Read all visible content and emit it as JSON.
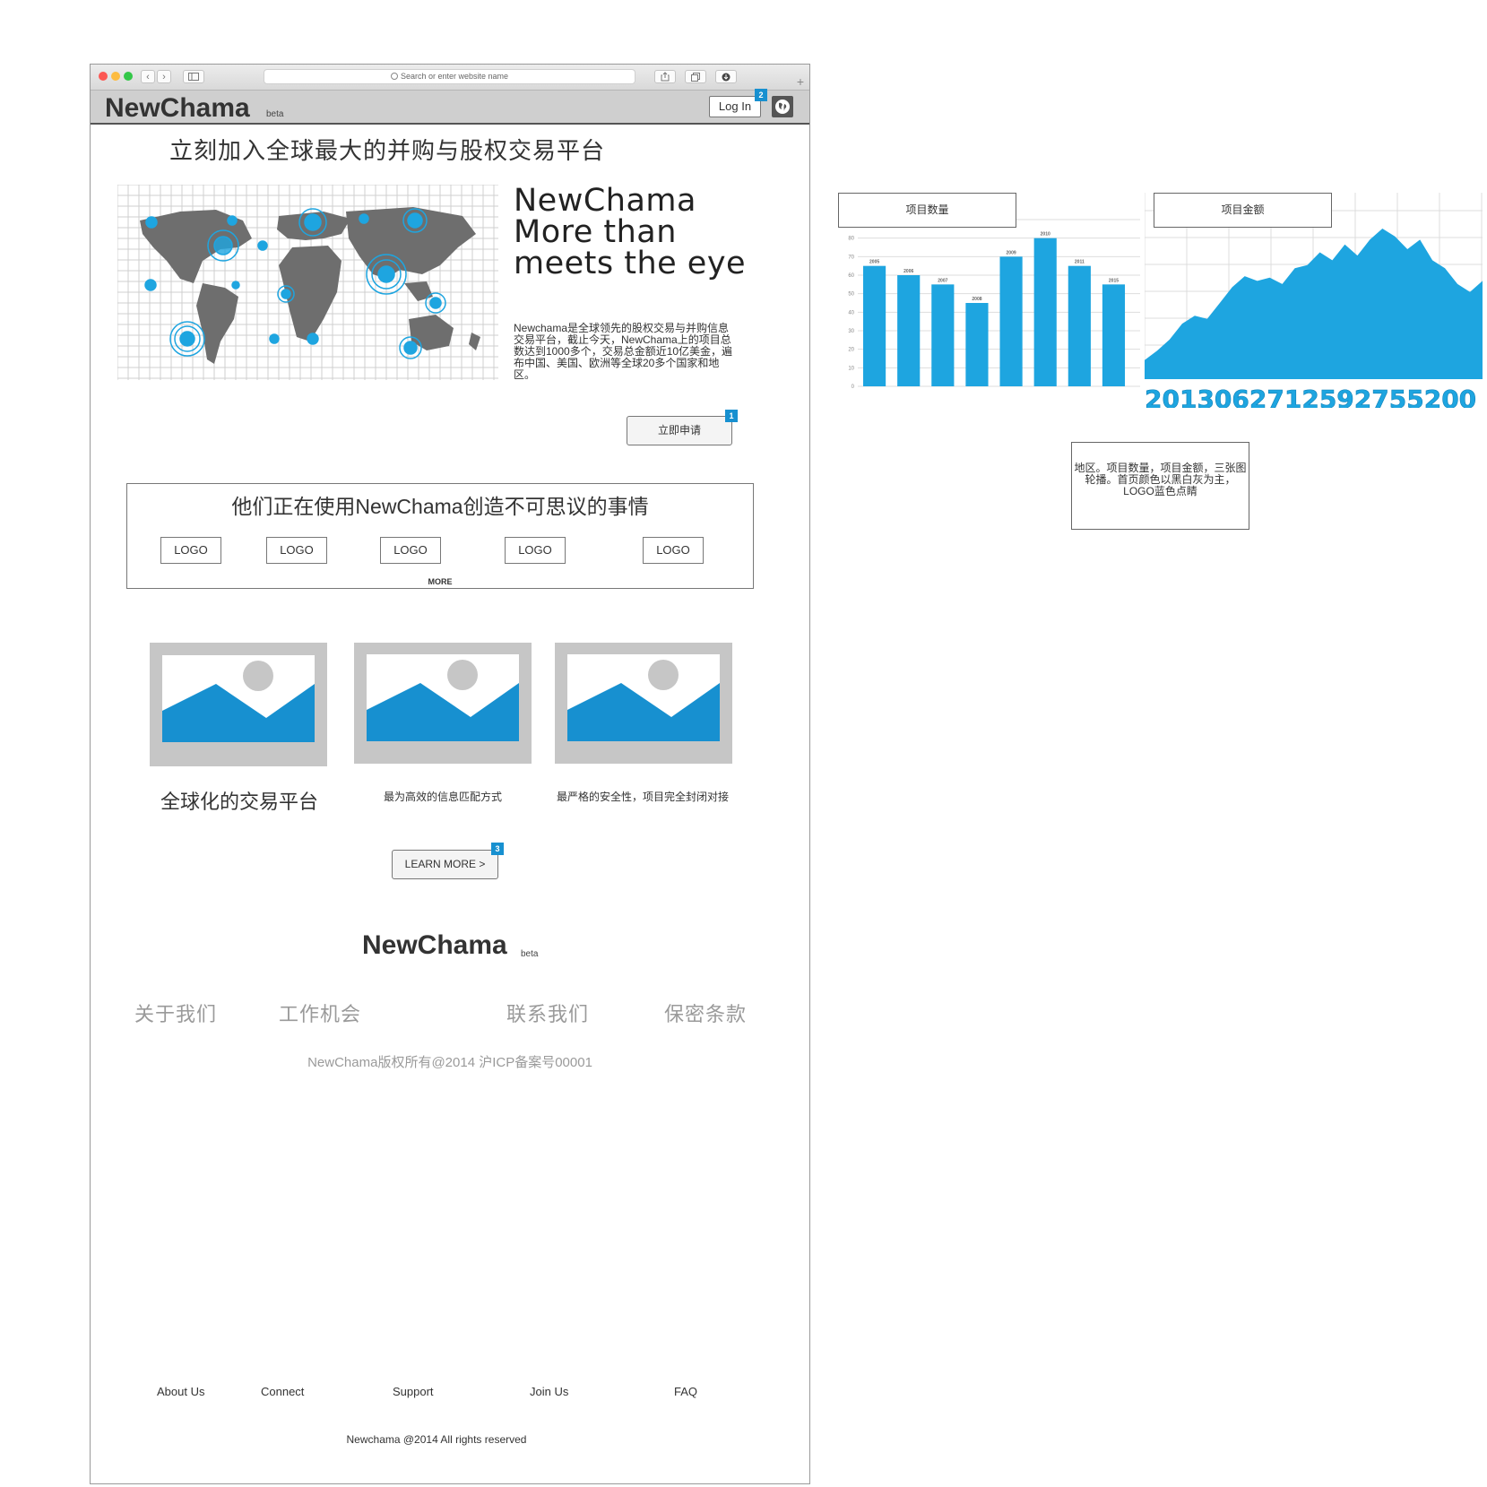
{
  "browser": {
    "url_placeholder": "Search or enter website name",
    "back_glyph": "‹",
    "forward_glyph": "›",
    "new_tab_glyph": "+"
  },
  "header": {
    "brand": "NewChama",
    "beta": "beta",
    "login_label": "Log In",
    "login_badge": "2",
    "globe_icon": "globe-icon"
  },
  "hero": {
    "headline": "立刻加入全球最大的并购与股权交易平台",
    "slogan_lines": [
      "NewChama",
      "More than",
      "meets the eye"
    ],
    "intro": "Newchama是全球领先的股权交易与并购信息交易平台，截止今天，NewChama上的项目总数达到1000多个，交易总金额近10亿美金，遍布中国、美国、欧洲等全球20多个国家和地区。",
    "apply_label": "立即申请",
    "apply_badge": "1"
  },
  "partners": {
    "title": "他们正在使用NewChama创造不可思议的事情",
    "logos": [
      "LOGO",
      "LOGO",
      "LOGO",
      "LOGO",
      "LOGO"
    ],
    "more_label": "MORE"
  },
  "features": [
    {
      "title": "全球化的交易平台"
    },
    {
      "title": "最为高效的信息匹配方式"
    },
    {
      "title": "最严格的安全性，项目完全封闭对接"
    }
  ],
  "learn_more": {
    "label": "LEARN MORE >",
    "badge": "3"
  },
  "footer": {
    "brand": "NewChama",
    "beta": "beta",
    "cn_links": [
      "关于我们",
      "工作机会",
      "联系我们",
      "保密条款"
    ],
    "cn_copyright": "NewChama版权所有@2014 沪ICP备案号00001",
    "en_links": [
      "About Us",
      "Connect",
      "Support",
      "Join Us",
      "FAQ"
    ],
    "en_copyright": "Newchama @2014 All rights reserved"
  },
  "side": {
    "bar_label": "项目数量",
    "area_label": "项目金额",
    "note": "地区。项目数量，项目金额，三张图轮播。首页颜色以黑白灰为主，LOGO蓝色点睛"
  },
  "colors": {
    "accent": "#1790d0",
    "bar": "#1ea5e0",
    "placeholder": "#c6c6c6",
    "map": "#6e6e6e"
  },
  "chart_data": [
    {
      "type": "bar",
      "categories": [
        "2005",
        "2006",
        "2007",
        "2008",
        "2009",
        "2010",
        "2011",
        "2015"
      ],
      "values": [
        65,
        60,
        55,
        45,
        70,
        80,
        65,
        55
      ],
      "ylim": [
        0,
        90
      ],
      "yticks": [
        0,
        10,
        20,
        30,
        40,
        50,
        60,
        70,
        80,
        90
      ],
      "grid": true
    },
    {
      "type": "area",
      "values": [
        12,
        18,
        25,
        35,
        40,
        38,
        48,
        58,
        65,
        62,
        64,
        60,
        70,
        72,
        80,
        75,
        85,
        78,
        88,
        95,
        90,
        82,
        88,
        75,
        70,
        60,
        55,
        62
      ],
      "x_tick_text": "2013062712592755200",
      "grid": true
    }
  ]
}
